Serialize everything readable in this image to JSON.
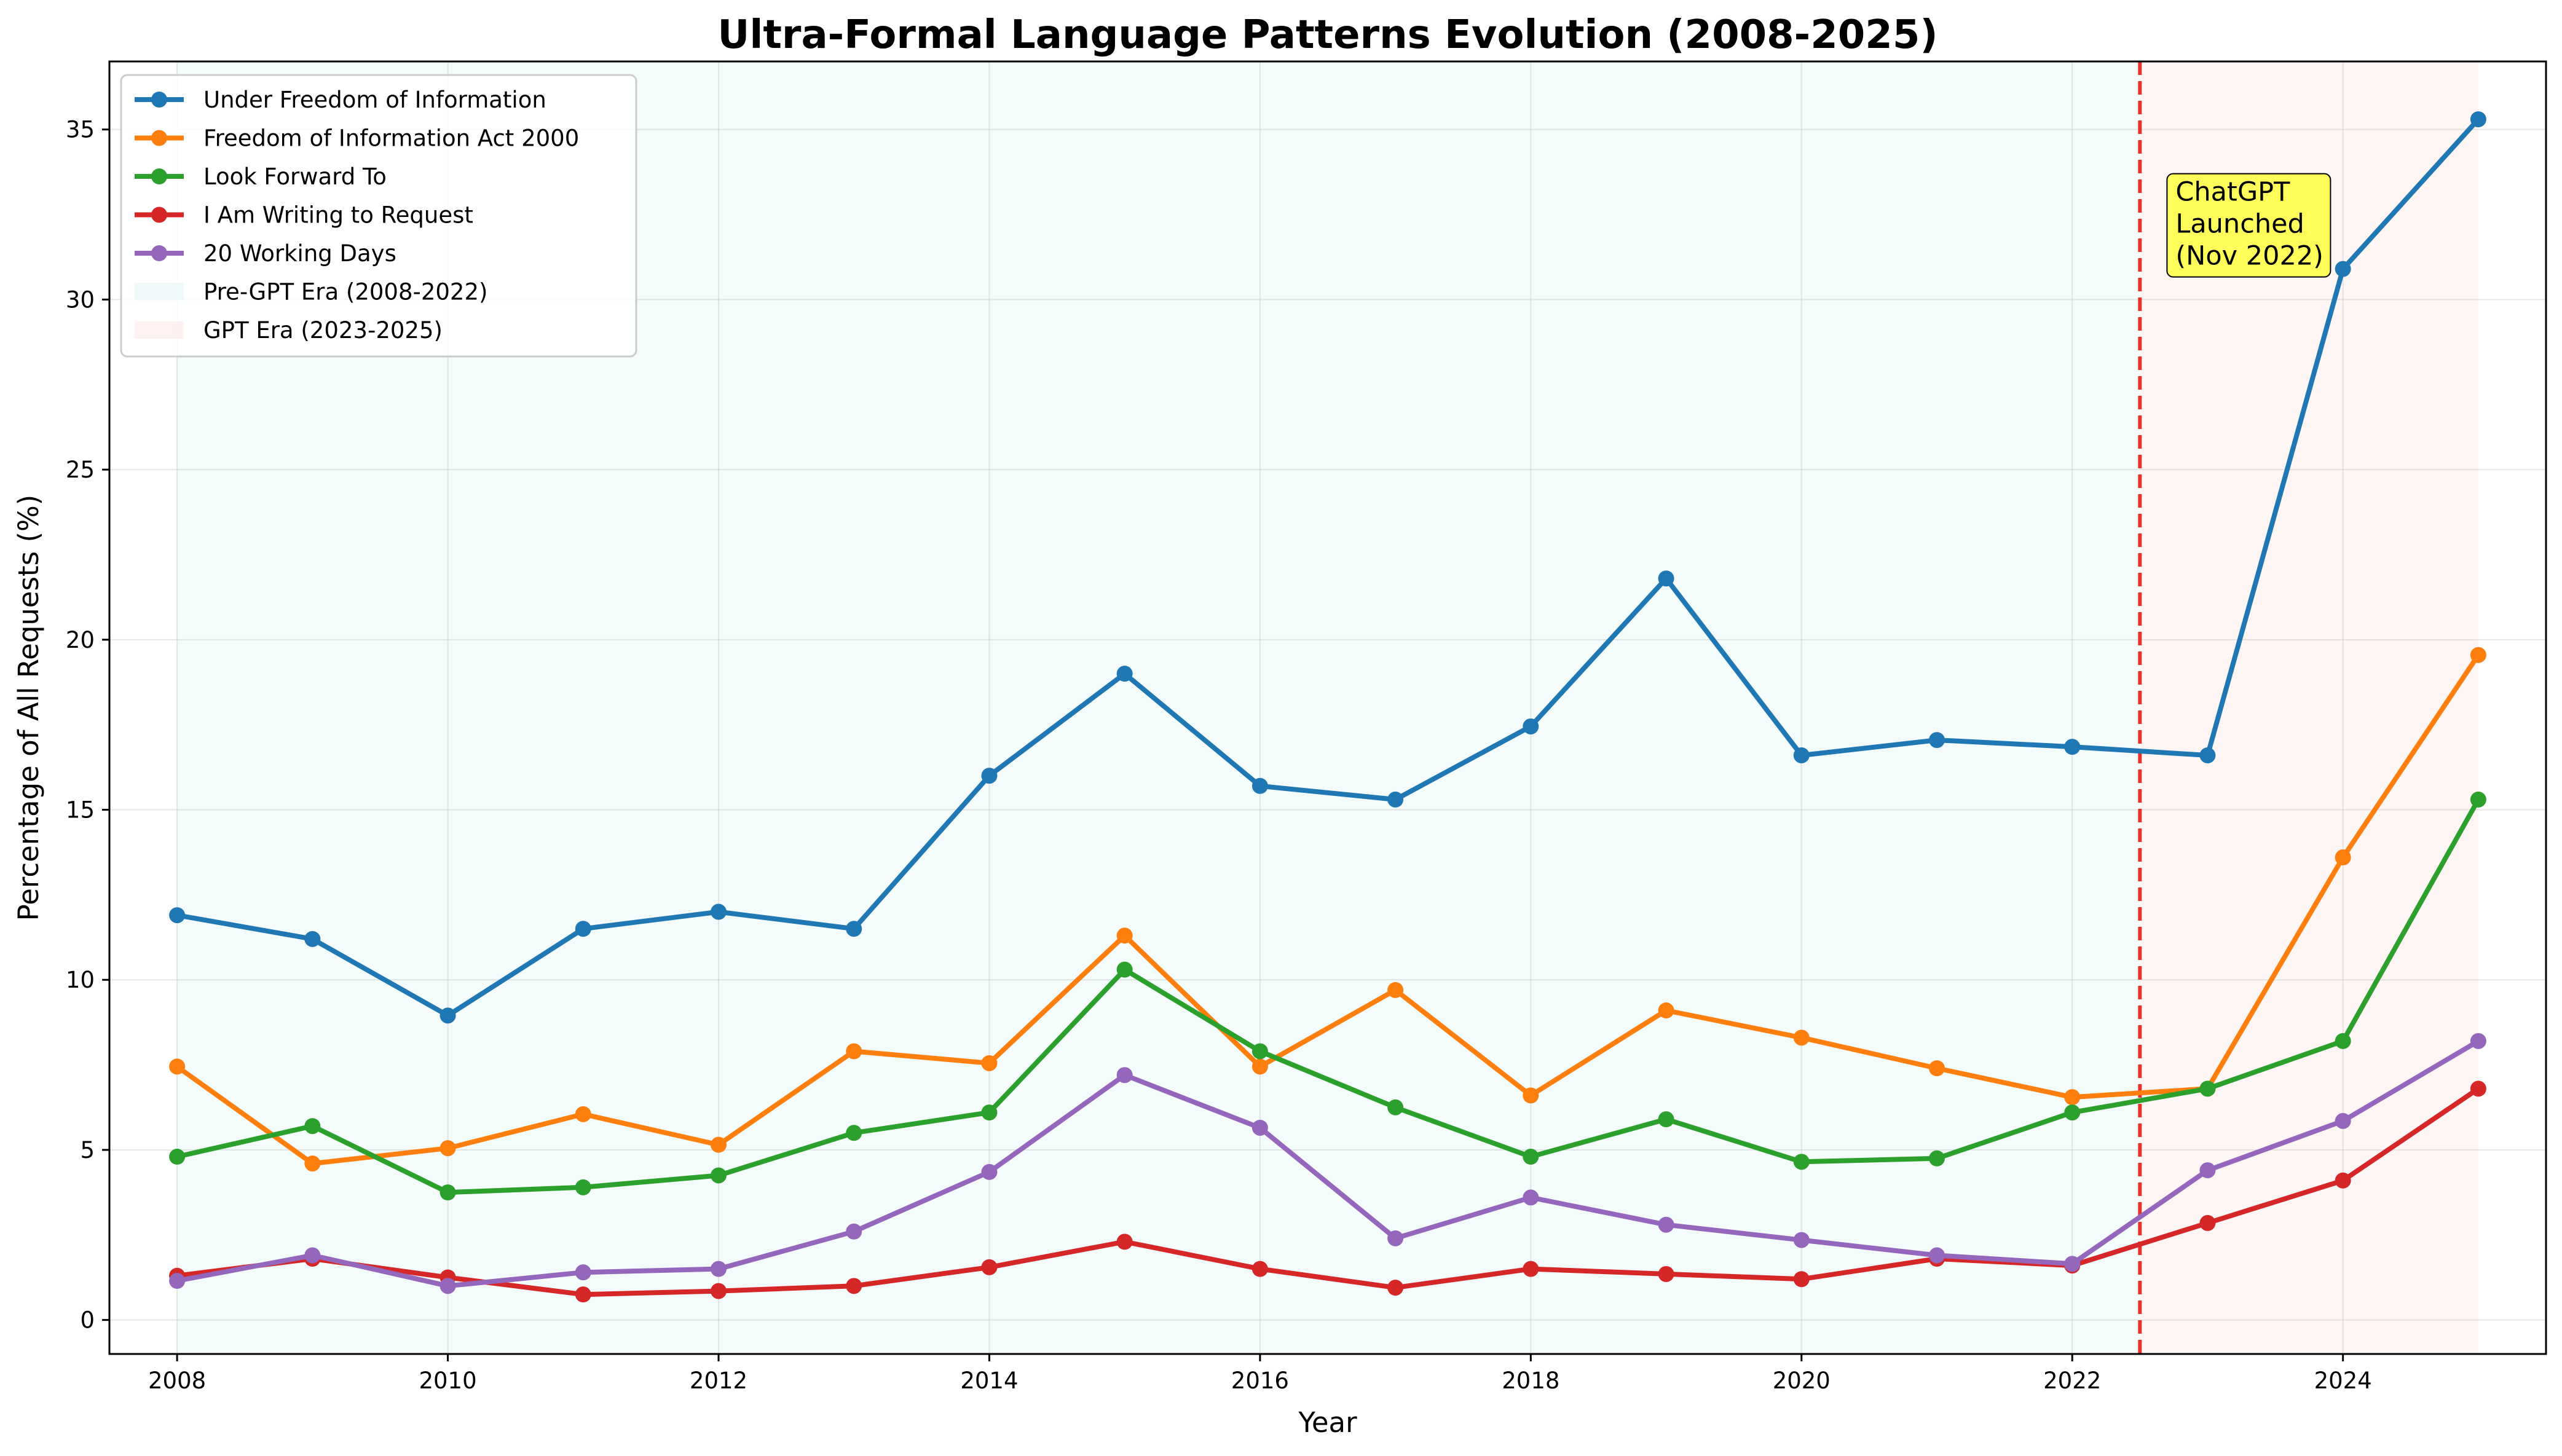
{
  "chart_data": {
    "type": "line",
    "title": "Ultra-Formal Language Patterns Evolution (2008-2025)",
    "xlabel": "Year",
    "ylabel": "Percentage of All Requests (%)",
    "xlim": [
      2007.5,
      2025.5
    ],
    "ylim": [
      -1,
      37
    ],
    "grid": true,
    "legend_position": "top-left",
    "x_ticks": [
      "2008",
      "2010",
      "2012",
      "2014",
      "2016",
      "2018",
      "2020",
      "2022",
      "2024"
    ],
    "y_ticks": [
      "0",
      "5",
      "10",
      "15",
      "20",
      "25",
      "30",
      "35"
    ],
    "x": [
      2008,
      2009,
      2010,
      2011,
      2012,
      2013,
      2014,
      2015,
      2016,
      2017,
      2018,
      2019,
      2020,
      2021,
      2022,
      2023,
      2024,
      2025
    ],
    "series": [
      {
        "name": "Under Freedom of Information",
        "color": "#1f77b4",
        "values": [
          11.9,
          11.2,
          8.95,
          11.5,
          12.0,
          11.5,
          16.0,
          19.0,
          15.7,
          15.3,
          17.45,
          21.8,
          16.6,
          17.05,
          16.85,
          16.6,
          30.9,
          35.3
        ]
      },
      {
        "name": "Freedom of Information Act 2000",
        "color": "#ff7f0e",
        "values": [
          7.45,
          4.6,
          5.05,
          6.05,
          5.15,
          7.9,
          7.55,
          11.3,
          7.45,
          9.7,
          6.6,
          9.1,
          8.3,
          7.4,
          6.55,
          6.8,
          13.6,
          19.55
        ]
      },
      {
        "name": "Look Forward To",
        "color": "#2ca02c",
        "values": [
          4.8,
          5.7,
          3.75,
          3.9,
          4.25,
          5.5,
          6.1,
          10.3,
          7.9,
          6.25,
          4.8,
          5.9,
          4.65,
          4.75,
          6.1,
          6.8,
          8.2,
          15.3
        ]
      },
      {
        "name": "I Am Writing to Request",
        "color": "#d62728",
        "values": [
          1.3,
          1.8,
          1.25,
          0.75,
          0.85,
          1.0,
          1.55,
          2.3,
          1.5,
          0.95,
          1.5,
          1.35,
          1.2,
          1.8,
          1.6,
          2.85,
          4.1,
          6.8
        ]
      },
      {
        "name": "20 Working Days",
        "color": "#9467bd",
        "values": [
          1.15,
          1.9,
          1.0,
          1.4,
          1.5,
          2.6,
          4.35,
          7.2,
          5.65,
          2.4,
          3.6,
          2.8,
          2.35,
          1.9,
          1.65,
          4.4,
          5.85,
          8.2
        ]
      }
    ],
    "spans": [
      {
        "name": "Pre-GPT Era (2008-2022)",
        "color": "#e0f3f3",
        "from": 2008,
        "to": 2022.5
      },
      {
        "name": "GPT Era (2023-2025)",
        "color": "#fde3e3",
        "from": 2022.5,
        "to": 2025
      }
    ],
    "vline": {
      "x": 2022.5,
      "color": "#e8312b"
    },
    "annotation": {
      "lines": [
        "ChatGPT",
        "Launched",
        "(Nov 2022)"
      ],
      "x": 2022.7,
      "y": 33.7,
      "bg_color": "#ffff33"
    }
  }
}
